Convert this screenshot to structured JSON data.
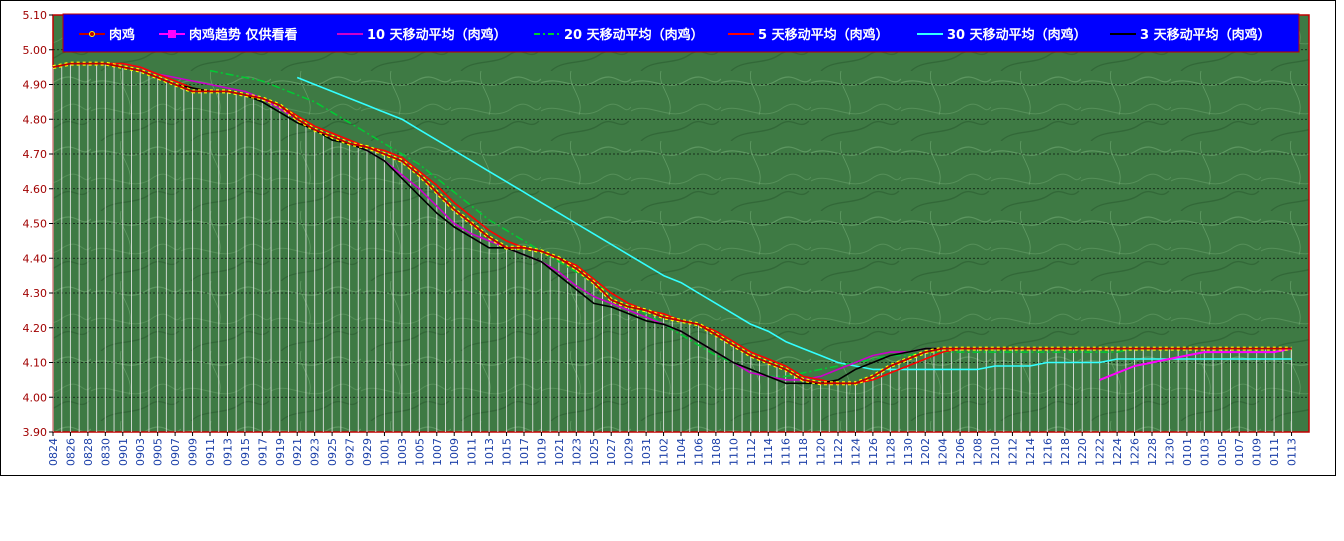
{
  "chart_data": {
    "type": "line",
    "y_ticks": [
      "3.90",
      "4.00",
      "4.10",
      "4.20",
      "4.30",
      "4.40",
      "4.50",
      "4.60",
      "4.70",
      "4.80",
      "4.90",
      "5.00",
      "5.10"
    ],
    "ylim": [
      3.9,
      5.1
    ],
    "grid": true,
    "legend_position": "top",
    "x_labels": [
      "0824",
      "0826",
      "0828",
      "0830",
      "0901",
      "0903",
      "0905",
      "0907",
      "0909",
      "0911",
      "0913",
      "0915",
      "0917",
      "0919",
      "0921",
      "0923",
      "0925",
      "0927",
      "0929",
      "1001",
      "1003",
      "1005",
      "1007",
      "1009",
      "1011",
      "1013",
      "1015",
      "1017",
      "1019",
      "1021",
      "1023",
      "1025",
      "1027",
      "1029",
      "1031",
      "1102",
      "1104",
      "1106",
      "1108",
      "1110",
      "1112",
      "1114",
      "1116",
      "1118",
      "1120",
      "1122",
      "1124",
      "1126",
      "1128",
      "1130",
      "1202",
      "1204",
      "1206",
      "1208",
      "1210",
      "1212",
      "1214",
      "1216",
      "1218",
      "1220",
      "1222",
      "1224",
      "1226",
      "1228",
      "1230",
      "0101",
      "0103",
      "0105",
      "0107",
      "0109",
      "0111",
      "0113"
    ],
    "series": [
      {
        "name": "肉鸡",
        "color": "#c00000",
        "x_start": 0,
        "values": [
          4.95,
          4.96,
          4.96,
          4.96,
          4.95,
          4.94,
          4.92,
          4.9,
          4.88,
          4.88,
          4.88,
          4.87,
          4.86,
          4.84,
          4.8,
          4.77,
          4.75,
          4.73,
          4.72,
          4.7,
          4.68,
          4.64,
          4.59,
          4.54,
          4.5,
          4.46,
          4.43,
          4.43,
          4.42,
          4.4,
          4.37,
          4.33,
          4.28,
          4.26,
          4.25,
          4.23,
          4.22,
          4.21,
          4.18,
          4.15,
          4.12,
          4.1,
          4.08,
          4.05,
          4.04,
          4.04,
          4.04,
          4.06,
          4.09,
          4.11,
          4.13,
          4.14,
          4.14,
          4.14,
          4.14,
          4.14,
          4.14,
          4.14,
          4.14,
          4.14,
          4.14,
          4.14,
          4.14,
          4.14,
          4.14,
          4.14,
          4.14,
          4.14,
          4.14,
          4.14,
          4.14,
          4.14
        ]
      },
      {
        "name": "肉鸡趋势   仅供看看",
        "color": "#ff00ff",
        "x_start": 60,
        "values": [
          4.05,
          4.07,
          4.09,
          4.1,
          4.11,
          4.12,
          4.13,
          4.13,
          4.13,
          4.13,
          4.13,
          4.14
        ]
      },
      {
        "name": "10 天移动平均（肉鸡）",
        "color": "#cc00cc",
        "x_start": 4,
        "values": [
          4.96,
          4.95,
          4.93,
          4.92,
          4.91,
          4.9,
          4.89,
          4.88,
          4.86,
          4.83,
          4.8,
          4.77,
          4.75,
          4.73,
          4.71,
          4.68,
          4.64,
          4.6,
          4.55,
          4.5,
          4.47,
          4.45,
          4.43,
          4.41,
          4.39,
          4.36,
          4.32,
          4.29,
          4.27,
          4.25,
          4.23,
          4.21,
          4.19,
          4.16,
          4.13,
          4.1,
          4.07,
          4.06,
          4.05,
          4.05,
          4.06,
          4.08,
          4.1,
          4.12,
          4.13,
          4.13,
          4.14,
          4.14,
          4.14,
          4.14,
          4.14,
          4.14,
          4.14,
          4.14,
          4.14,
          4.14,
          4.14,
          4.14,
          4.14,
          4.14,
          4.14,
          4.14,
          4.14,
          4.14,
          4.14,
          4.14,
          4.14,
          4.14
        ]
      },
      {
        "name": "20 天移动平均（肉鸡）",
        "color": "#00cc33",
        "x_start": 9,
        "values": [
          4.94,
          4.93,
          4.92,
          4.91,
          4.89,
          4.87,
          4.85,
          4.82,
          4.79,
          4.76,
          4.73,
          4.7,
          4.67,
          4.63,
          4.59,
          4.55,
          4.51,
          4.48,
          4.45,
          4.42,
          4.39,
          4.36,
          4.33,
          4.3,
          4.27,
          4.24,
          4.21,
          4.18,
          4.15,
          4.12,
          4.1,
          4.08,
          4.06,
          4.06,
          4.07,
          4.08,
          4.09,
          4.1,
          4.11,
          4.12,
          4.12,
          4.13,
          4.13,
          4.13,
          4.13,
          4.13,
          4.13,
          4.13,
          4.13,
          4.13,
          4.13,
          4.13,
          4.13,
          4.14,
          4.14,
          4.14,
          4.14,
          4.14,
          4.14,
          4.14,
          4.14,
          4.14,
          4.14
        ]
      },
      {
        "name": "5 天移动平均（肉鸡）",
        "color": "#ff0000",
        "x_start": 2,
        "values": [
          4.96,
          4.96,
          4.96,
          4.95,
          4.93,
          4.91,
          4.89,
          4.88,
          4.88,
          4.87,
          4.86,
          4.84,
          4.81,
          4.78,
          4.76,
          4.74,
          4.72,
          4.71,
          4.69,
          4.65,
          4.61,
          4.56,
          4.52,
          4.48,
          4.45,
          4.43,
          4.42,
          4.4,
          4.38,
          4.34,
          4.3,
          4.27,
          4.25,
          4.24,
          4.22,
          4.21,
          4.19,
          4.16,
          4.13,
          4.11,
          4.09,
          4.06,
          4.05,
          4.04,
          4.04,
          4.05,
          4.07,
          4.09,
          4.11,
          4.13,
          4.14,
          4.14,
          4.14,
          4.14,
          4.14,
          4.14,
          4.14,
          4.14,
          4.14,
          4.14,
          4.14,
          4.14,
          4.14,
          4.14,
          4.14,
          4.14,
          4.14,
          4.14,
          4.14,
          4.14
        ]
      },
      {
        "name": "30 天移动平均（肉鸡）",
        "color": "#33ffff",
        "x_start": 14,
        "values": [
          4.92,
          4.9,
          4.88,
          4.86,
          4.84,
          4.82,
          4.8,
          4.77,
          4.74,
          4.71,
          4.68,
          4.65,
          4.62,
          4.59,
          4.56,
          4.53,
          4.5,
          4.47,
          4.44,
          4.41,
          4.38,
          4.35,
          4.33,
          4.3,
          4.27,
          4.24,
          4.21,
          4.19,
          4.16,
          4.14,
          4.12,
          4.1,
          4.09,
          4.08,
          4.08,
          4.08,
          4.08,
          4.08,
          4.08,
          4.08,
          4.09,
          4.09,
          4.09,
          4.1,
          4.1,
          4.1,
          4.1,
          4.11,
          4.11,
          4.11,
          4.11,
          4.11,
          4.11,
          4.11,
          4.11,
          4.11,
          4.11,
          4.11
        ]
      },
      {
        "name": "3 天移动平均（肉鸡）",
        "color": "#000000",
        "x_start": 1,
        "values": [
          4.96,
          4.96,
          4.96,
          4.95,
          4.94,
          4.92,
          4.9,
          4.89,
          4.88,
          4.88,
          4.87,
          4.85,
          4.82,
          4.79,
          4.77,
          4.74,
          4.73,
          4.71,
          4.68,
          4.63,
          4.58,
          4.53,
          4.49,
          4.46,
          4.43,
          4.43,
          4.41,
          4.39,
          4.35,
          4.31,
          4.27,
          4.26,
          4.24,
          4.22,
          4.21,
          4.19,
          4.16,
          4.13,
          4.1,
          4.08,
          4.06,
          4.04,
          4.04,
          4.04,
          4.05,
          4.08,
          4.1,
          4.12,
          4.13,
          4.14,
          4.14,
          4.14,
          4.14,
          4.14,
          4.14,
          4.14,
          4.14,
          4.14,
          4.14,
          4.14,
          4.14,
          4.14,
          4.14,
          4.14,
          4.14,
          4.14,
          4.14,
          4.14,
          4.14,
          4.14,
          4.14
        ]
      }
    ]
  }
}
